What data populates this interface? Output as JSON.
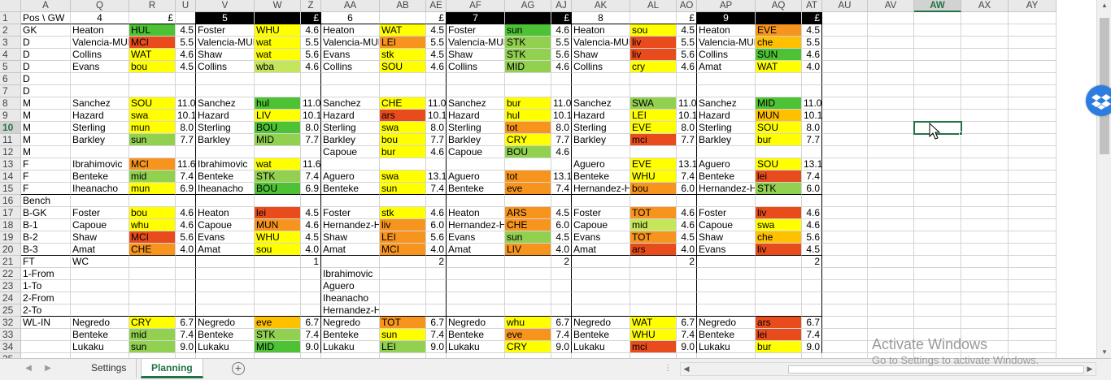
{
  "columns": [
    "A",
    "Q",
    "R",
    "U",
    "V",
    "W",
    "Z",
    "AA",
    "AB",
    "AE",
    "AF",
    "AG",
    "AJ",
    "AK",
    "AL",
    "AO",
    "AP",
    "AQ",
    "AT",
    "AU",
    "AV",
    "AW",
    "AX",
    "AY"
  ],
  "selected_column": "AW",
  "row_numbers": [
    "1",
    "2",
    "3",
    "4",
    "5",
    "6",
    "7",
    "8",
    "9",
    "10",
    "11",
    "12",
    "13",
    "14",
    "15",
    "16",
    "17",
    "18",
    "19",
    "20",
    "21",
    "22",
    "23",
    "24",
    "25",
    "32",
    "33",
    "34",
    "35"
  ],
  "selected_row": "10",
  "colors": {
    "dg": "#4dc234",
    "g": "#92d050",
    "lg": "#c5e65a",
    "y": "#ffff00",
    "yo": "#ffc000",
    "o": "#f7941d",
    "r": "#e84c1c",
    "accent": "#217346"
  },
  "cells": [
    [
      "A1",
      "Pos \\ GW"
    ],
    [
      "Q1",
      "4",
      "c"
    ],
    [
      "R1",
      "£",
      "r"
    ],
    [
      "U1",
      ""
    ],
    [
      "V1",
      "5",
      "cb"
    ],
    [
      "Z1",
      "£",
      "rb"
    ],
    [
      "AA1",
      "6",
      "c"
    ],
    [
      "AE1",
      "£",
      "r"
    ],
    [
      "AF1",
      "7",
      "cb"
    ],
    [
      "AJ1",
      "£",
      "rb"
    ],
    [
      "AK1",
      "8",
      "c"
    ],
    [
      "AO1",
      "£",
      "r"
    ],
    [
      "AP1",
      "9",
      "cb"
    ],
    [
      "AT1",
      "£",
      "rb"
    ],
    [
      "A2",
      "GK"
    ],
    [
      "A3",
      "D"
    ],
    [
      "A4",
      "D"
    ],
    [
      "A5",
      "D"
    ],
    [
      "A6",
      "D"
    ],
    [
      "A7",
      "D"
    ],
    [
      "A8",
      "M"
    ],
    [
      "A9",
      "M"
    ],
    [
      "A10",
      "M"
    ],
    [
      "A11",
      "M"
    ],
    [
      "A12",
      "M"
    ],
    [
      "A13",
      "F"
    ],
    [
      "A14",
      "F"
    ],
    [
      "A15",
      "F"
    ],
    [
      "A16",
      "Bench"
    ],
    [
      "A17",
      "B-GK"
    ],
    [
      "A18",
      "B-1"
    ],
    [
      "A19",
      "B-2"
    ],
    [
      "A20",
      "B-3"
    ],
    [
      "A21",
      "FT"
    ],
    [
      "A22",
      "1-From"
    ],
    [
      "A23",
      "1-To"
    ],
    [
      "A24",
      "2-From"
    ],
    [
      "A25",
      "2-To"
    ],
    [
      "A32",
      "WL-IN"
    ],
    [
      "Q2",
      "Heaton"
    ],
    [
      "R2",
      "HUL",
      null,
      "dg"
    ],
    [
      "U2",
      "4.5"
    ],
    [
      "Q3",
      "Valencia-MUN"
    ],
    [
      "R3",
      "MCI",
      null,
      "r"
    ],
    [
      "U3",
      "5.5"
    ],
    [
      "Q4",
      "Collins"
    ],
    [
      "R4",
      "WAT",
      null,
      "y"
    ],
    [
      "U4",
      "4.6"
    ],
    [
      "Q5",
      "Evans"
    ],
    [
      "R5",
      "bou",
      null,
      "y"
    ],
    [
      "U5",
      "4.5"
    ],
    [
      "Q8",
      "Sanchez"
    ],
    [
      "R8",
      "SOU",
      null,
      "y"
    ],
    [
      "U8",
      "11.0"
    ],
    [
      "Q9",
      "Hazard"
    ],
    [
      "R9",
      "swa",
      null,
      "y"
    ],
    [
      "U9",
      "10.1"
    ],
    [
      "Q10",
      "Sterling"
    ],
    [
      "R10",
      "mun",
      null,
      "y"
    ],
    [
      "U10",
      "8.0"
    ],
    [
      "Q11",
      "Barkley"
    ],
    [
      "R11",
      "sun",
      null,
      "g"
    ],
    [
      "U11",
      "7.7"
    ],
    [
      "Q13",
      "Ibrahimovic"
    ],
    [
      "R13",
      "MCI",
      null,
      "o"
    ],
    [
      "U13",
      "11.6"
    ],
    [
      "Q14",
      "Benteke"
    ],
    [
      "R14",
      "mid",
      null,
      "g"
    ],
    [
      "U14",
      "7.4"
    ],
    [
      "Q15",
      "Iheanacho"
    ],
    [
      "R15",
      "mun",
      null,
      "y"
    ],
    [
      "U15",
      "6.9"
    ],
    [
      "Q17",
      "Foster"
    ],
    [
      "R17",
      "bou",
      null,
      "y"
    ],
    [
      "U17",
      "4.6"
    ],
    [
      "Q18",
      "Capoue"
    ],
    [
      "R18",
      "whu",
      null,
      "y"
    ],
    [
      "U18",
      "4.6"
    ],
    [
      "Q19",
      "Shaw"
    ],
    [
      "R19",
      "MCI",
      null,
      "r"
    ],
    [
      "U19",
      "5.6"
    ],
    [
      "Q20",
      "Amat"
    ],
    [
      "R20",
      "CHE",
      null,
      "o"
    ],
    [
      "U20",
      "4.0"
    ],
    [
      "Q21",
      "WC"
    ],
    [
      "Z21",
      "1",
      "r"
    ],
    [
      "Q32",
      "Negredo"
    ],
    [
      "R32",
      "CRY",
      null,
      "y"
    ],
    [
      "U32",
      "6.7"
    ],
    [
      "Q33",
      "Benteke"
    ],
    [
      "R33",
      "mid",
      null,
      "g"
    ],
    [
      "U33",
      "7.4"
    ],
    [
      "Q34",
      "Lukaku"
    ],
    [
      "R34",
      "sun",
      null,
      "g"
    ],
    [
      "U34",
      "9.0"
    ],
    [
      "V2",
      "Foster"
    ],
    [
      "W2",
      "WHU",
      null,
      "y"
    ],
    [
      "Z2",
      "4.6"
    ],
    [
      "V3",
      "Valencia-MUN"
    ],
    [
      "W3",
      "wat",
      null,
      "y"
    ],
    [
      "Z3",
      "5.5"
    ],
    [
      "V4",
      "Shaw"
    ],
    [
      "W4",
      "wat",
      null,
      "y"
    ],
    [
      "Z4",
      "5.6"
    ],
    [
      "V5",
      "Collins"
    ],
    [
      "W5",
      "wba",
      null,
      "lg"
    ],
    [
      "Z5",
      "4.6"
    ],
    [
      "V8",
      "Sanchez"
    ],
    [
      "W8",
      "hul",
      null,
      "dg"
    ],
    [
      "Z8",
      "11.0"
    ],
    [
      "V9",
      "Hazard"
    ],
    [
      "W9",
      "LIV",
      null,
      "y"
    ],
    [
      "Z9",
      "10.1"
    ],
    [
      "V10",
      "Sterling"
    ],
    [
      "W10",
      "BOU",
      null,
      "dg"
    ],
    [
      "Z10",
      "8.0"
    ],
    [
      "V11",
      "Barkley"
    ],
    [
      "W11",
      "MID",
      null,
      "g"
    ],
    [
      "Z11",
      "7.7"
    ],
    [
      "V13",
      "Ibrahimovic"
    ],
    [
      "W13",
      "wat",
      null,
      "y"
    ],
    [
      "Z13",
      "11.6"
    ],
    [
      "V14",
      "Benteke"
    ],
    [
      "W14",
      "STK",
      null,
      "g"
    ],
    [
      "Z14",
      "7.4"
    ],
    [
      "V15",
      "Iheanacho"
    ],
    [
      "W15",
      "BOU",
      null,
      "dg"
    ],
    [
      "Z15",
      "6.9"
    ],
    [
      "V17",
      "Heaton"
    ],
    [
      "W17",
      "lei",
      null,
      "r"
    ],
    [
      "Z17",
      "4.5"
    ],
    [
      "V18",
      "Capoue"
    ],
    [
      "W18",
      "MUN",
      null,
      "o"
    ],
    [
      "Z18",
      "4.6"
    ],
    [
      "V19",
      "Evans"
    ],
    [
      "W19",
      "WHU",
      null,
      "y"
    ],
    [
      "Z19",
      "4.5"
    ],
    [
      "V20",
      "Amat"
    ],
    [
      "W20",
      "sou",
      null,
      "y"
    ],
    [
      "Z20",
      "4.0"
    ],
    [
      "V32",
      "Negredo"
    ],
    [
      "W32",
      "eve",
      null,
      "yo"
    ],
    [
      "Z32",
      "6.7"
    ],
    [
      "V33",
      "Benteke"
    ],
    [
      "W33",
      "STK",
      null,
      "g"
    ],
    [
      "Z33",
      "7.4"
    ],
    [
      "V34",
      "Lukaku"
    ],
    [
      "W34",
      "MID",
      null,
      "dg"
    ],
    [
      "Z34",
      "9.0"
    ],
    [
      "AA2",
      "Heaton"
    ],
    [
      "AB2",
      "WAT",
      null,
      "y"
    ],
    [
      "AE2",
      "4.5"
    ],
    [
      "AA3",
      "Valencia-MUN"
    ],
    [
      "AB3",
      "LEI",
      null,
      "o"
    ],
    [
      "AE3",
      "5.5"
    ],
    [
      "AA4",
      "Evans"
    ],
    [
      "AB4",
      "stk",
      null,
      "y"
    ],
    [
      "AE4",
      "4.5"
    ],
    [
      "AA5",
      "Collins"
    ],
    [
      "AB5",
      "SOU",
      null,
      "y"
    ],
    [
      "AE5",
      "4.6"
    ],
    [
      "AA8",
      "Sanchez"
    ],
    [
      "AB8",
      "CHE",
      null,
      "y"
    ],
    [
      "AE8",
      "11.0"
    ],
    [
      "AA9",
      "Hazard"
    ],
    [
      "AB9",
      "ars",
      null,
      "r"
    ],
    [
      "AE9",
      "10.1"
    ],
    [
      "AA10",
      "Sterling"
    ],
    [
      "AB10",
      "swa",
      null,
      "y"
    ],
    [
      "AE10",
      "8.0"
    ],
    [
      "AA11",
      "Barkley"
    ],
    [
      "AB11",
      "bou",
      null,
      "y"
    ],
    [
      "AE11",
      "7.7"
    ],
    [
      "AA12",
      "Capoue"
    ],
    [
      "AB12",
      "bur",
      null,
      "y"
    ],
    [
      "AE12",
      "4.6"
    ],
    [
      "AA14",
      "Aguero"
    ],
    [
      "AB14",
      "swa",
      null,
      "y"
    ],
    [
      "AE14",
      "13.1"
    ],
    [
      "AA15",
      "Benteke"
    ],
    [
      "AB15",
      "sun",
      null,
      "y"
    ],
    [
      "AE15",
      "7.4"
    ],
    [
      "AA17",
      "Foster"
    ],
    [
      "AB17",
      "stk",
      null,
      "y"
    ],
    [
      "AE17",
      "4.6"
    ],
    [
      "AA18",
      "Hernandez-HUL"
    ],
    [
      "AB18",
      "liv",
      null,
      "o"
    ],
    [
      "AE18",
      "6.0"
    ],
    [
      "AA19",
      "Shaw"
    ],
    [
      "AB19",
      "LEI",
      null,
      "o"
    ],
    [
      "AE19",
      "5.6"
    ],
    [
      "AA20",
      "Amat"
    ],
    [
      "AB20",
      "MCI",
      null,
      "o"
    ],
    [
      "AE20",
      "4.0"
    ],
    [
      "AE21",
      "2",
      "r"
    ],
    [
      "AA22",
      "Ibrahimovic"
    ],
    [
      "AA23",
      "Aguero"
    ],
    [
      "AA24",
      "Iheanacho"
    ],
    [
      "AA25",
      "Hernandez-HUL"
    ],
    [
      "AA32",
      "Negredo"
    ],
    [
      "AB32",
      "TOT",
      null,
      "o"
    ],
    [
      "AE32",
      "6.7"
    ],
    [
      "AA33",
      "Benteke"
    ],
    [
      "AB33",
      "sun",
      null,
      "y"
    ],
    [
      "AE33",
      "7.4"
    ],
    [
      "AA34",
      "Lukaku"
    ],
    [
      "AB34",
      "LEI",
      null,
      "g"
    ],
    [
      "AE34",
      "9.0"
    ],
    [
      "AF2",
      "Foster"
    ],
    [
      "AG2",
      "sun",
      null,
      "dg"
    ],
    [
      "AJ2",
      "4.6"
    ],
    [
      "AF3",
      "Valencia-MUN"
    ],
    [
      "AG3",
      "STK",
      null,
      "g"
    ],
    [
      "AJ3",
      "5.5"
    ],
    [
      "AF4",
      "Shaw"
    ],
    [
      "AG4",
      "STK",
      null,
      "g"
    ],
    [
      "AJ4",
      "5.6"
    ],
    [
      "AF5",
      "Collins"
    ],
    [
      "AG5",
      "MID",
      null,
      "g"
    ],
    [
      "AJ5",
      "4.6"
    ],
    [
      "AF8",
      "Sanchez"
    ],
    [
      "AG8",
      "bur",
      null,
      "y"
    ],
    [
      "AJ8",
      "11.0"
    ],
    [
      "AF9",
      "Hazard"
    ],
    [
      "AG9",
      "hul",
      null,
      "y"
    ],
    [
      "AJ9",
      "10.1"
    ],
    [
      "AF10",
      "Sterling"
    ],
    [
      "AG10",
      "tot",
      null,
      "o"
    ],
    [
      "AJ10",
      "8.0"
    ],
    [
      "AF11",
      "Barkley"
    ],
    [
      "AG11",
      "CRY",
      null,
      "y"
    ],
    [
      "AJ11",
      "7.7"
    ],
    [
      "AF12",
      "Capoue"
    ],
    [
      "AG12",
      "BOU",
      null,
      "g"
    ],
    [
      "AJ12",
      "4.6"
    ],
    [
      "AF14",
      "Aguero"
    ],
    [
      "AG14",
      "tot",
      null,
      "o"
    ],
    [
      "AJ14",
      "13.1"
    ],
    [
      "AF15",
      "Benteke"
    ],
    [
      "AG15",
      "eve",
      null,
      "o"
    ],
    [
      "AJ15",
      "7.4"
    ],
    [
      "AF17",
      "Heaton"
    ],
    [
      "AG17",
      "ARS",
      null,
      "o"
    ],
    [
      "AJ17",
      "4.5"
    ],
    [
      "AF18",
      "Hernandez-HUL"
    ],
    [
      "AG18",
      "CHE",
      null,
      "o"
    ],
    [
      "AJ18",
      "6.0"
    ],
    [
      "AF19",
      "Evans"
    ],
    [
      "AG19",
      "sun",
      null,
      "g"
    ],
    [
      "AJ19",
      "4.5"
    ],
    [
      "AF20",
      "Amat"
    ],
    [
      "AG20",
      "LIV",
      null,
      "o"
    ],
    [
      "AJ20",
      "4.0"
    ],
    [
      "AJ21",
      "2",
      "r"
    ],
    [
      "AF32",
      "Negredo"
    ],
    [
      "AG32",
      "whu",
      null,
      "y"
    ],
    [
      "AJ32",
      "6.7"
    ],
    [
      "AF33",
      "Benteke"
    ],
    [
      "AG33",
      "eve",
      null,
      "o"
    ],
    [
      "AJ33",
      "7.4"
    ],
    [
      "AF34",
      "Lukaku"
    ],
    [
      "AG34",
      "CRY",
      null,
      "y"
    ],
    [
      "AJ34",
      "9.0"
    ],
    [
      "AK2",
      "Heaton"
    ],
    [
      "AL2",
      "sou",
      null,
      "y"
    ],
    [
      "AO2",
      "4.5"
    ],
    [
      "AK3",
      "Valencia-MUN"
    ],
    [
      "AL3",
      "liv",
      null,
      "r"
    ],
    [
      "AO3",
      "5.5"
    ],
    [
      "AK4",
      "Shaw"
    ],
    [
      "AL4",
      "liv",
      null,
      "r"
    ],
    [
      "AO4",
      "5.6"
    ],
    [
      "AK5",
      "Collins"
    ],
    [
      "AL5",
      "cry",
      null,
      "y"
    ],
    [
      "AO5",
      "4.6"
    ],
    [
      "AK8",
      "Sanchez"
    ],
    [
      "AL8",
      "SWA",
      null,
      "g"
    ],
    [
      "AO8",
      "11.0"
    ],
    [
      "AK9",
      "Hazard"
    ],
    [
      "AL9",
      "LEI",
      null,
      "y"
    ],
    [
      "AO9",
      "10.1"
    ],
    [
      "AK10",
      "Sterling"
    ],
    [
      "AL10",
      "EVE",
      null,
      "y"
    ],
    [
      "AO10",
      "8.0"
    ],
    [
      "AK11",
      "Barkley"
    ],
    [
      "AL11",
      "mci",
      null,
      "r"
    ],
    [
      "AO11",
      "7.7"
    ],
    [
      "AK13",
      "Aguero"
    ],
    [
      "AL13",
      "EVE",
      null,
      "y"
    ],
    [
      "AO13",
      "13.1"
    ],
    [
      "AK14",
      "Benteke"
    ],
    [
      "AL14",
      "WHU",
      null,
      "y"
    ],
    [
      "AO14",
      "7.4"
    ],
    [
      "AK15",
      "Hernandez-HUL"
    ],
    [
      "AL15",
      "bou",
      null,
      "o"
    ],
    [
      "AO15",
      "6.0"
    ],
    [
      "AK17",
      "Foster"
    ],
    [
      "AL17",
      "TOT",
      null,
      "o"
    ],
    [
      "AO17",
      "4.6"
    ],
    [
      "AK18",
      "Capoue"
    ],
    [
      "AL18",
      "mid",
      null,
      "lg"
    ],
    [
      "AO18",
      "4.6"
    ],
    [
      "AK19",
      "Evans"
    ],
    [
      "AL19",
      "TOT",
      null,
      "o"
    ],
    [
      "AO19",
      "4.5"
    ],
    [
      "AK20",
      "Amat"
    ],
    [
      "AL20",
      "ars",
      null,
      "r"
    ],
    [
      "AO20",
      "4.0"
    ],
    [
      "AO21",
      "2",
      "r"
    ],
    [
      "AK32",
      "Negredo"
    ],
    [
      "AL32",
      "WAT",
      null,
      "y"
    ],
    [
      "AO32",
      "6.7"
    ],
    [
      "AK33",
      "Benteke"
    ],
    [
      "AL33",
      "WHU",
      null,
      "y"
    ],
    [
      "AO33",
      "7.4"
    ],
    [
      "AK34",
      "Lukaku"
    ],
    [
      "AL34",
      "mci",
      null,
      "r"
    ],
    [
      "AO34",
      "9.0"
    ],
    [
      "AP2",
      "Heaton"
    ],
    [
      "AQ2",
      "EVE",
      null,
      "o"
    ],
    [
      "AT2",
      "4.5"
    ],
    [
      "AP3",
      "Valencia-MUN"
    ],
    [
      "AQ3",
      "che",
      null,
      "yo"
    ],
    [
      "AT3",
      "5.5"
    ],
    [
      "AP4",
      "Collins"
    ],
    [
      "AQ4",
      "SUN",
      null,
      "dg"
    ],
    [
      "AT4",
      "4.6"
    ],
    [
      "AP5",
      "Amat"
    ],
    [
      "AQ5",
      "WAT",
      null,
      "y"
    ],
    [
      "AT5",
      "4.0"
    ],
    [
      "AP8",
      "Sanchez"
    ],
    [
      "AQ8",
      "MID",
      null,
      "dg"
    ],
    [
      "AT8",
      "11.0"
    ],
    [
      "AP9",
      "Hazard"
    ],
    [
      "AQ9",
      "MUN",
      null,
      "yo"
    ],
    [
      "AT9",
      "10.1"
    ],
    [
      "AP10",
      "Sterling"
    ],
    [
      "AQ10",
      "SOU",
      null,
      "y"
    ],
    [
      "AT10",
      "8.0"
    ],
    [
      "AP11",
      "Barkley"
    ],
    [
      "AQ11",
      "bur",
      null,
      "y"
    ],
    [
      "AT11",
      "7.7"
    ],
    [
      "AP13",
      "Aguero"
    ],
    [
      "AQ13",
      "SOU",
      null,
      "y"
    ],
    [
      "AT13",
      "13.1"
    ],
    [
      "AP14",
      "Benteke"
    ],
    [
      "AQ14",
      "lei",
      null,
      "r"
    ],
    [
      "AT14",
      "7.4"
    ],
    [
      "AP15",
      "Hernandez-HUL"
    ],
    [
      "AQ15",
      "STK",
      null,
      "g"
    ],
    [
      "AT15",
      "6.0"
    ],
    [
      "AP17",
      "Foster"
    ],
    [
      "AQ17",
      "liv",
      null,
      "r"
    ],
    [
      "AT17",
      "4.6"
    ],
    [
      "AP18",
      "Capoue"
    ],
    [
      "AQ18",
      "swa",
      null,
      "y"
    ],
    [
      "AT18",
      "4.6"
    ],
    [
      "AP19",
      "Shaw"
    ],
    [
      "AQ19",
      "che",
      null,
      "yo"
    ],
    [
      "AT19",
      "5.6"
    ],
    [
      "AP20",
      "Evans"
    ],
    [
      "AQ20",
      "liv",
      null,
      "r"
    ],
    [
      "AT20",
      "4.5"
    ],
    [
      "AT21",
      "2",
      "r"
    ],
    [
      "AP32",
      "Negredo"
    ],
    [
      "AQ32",
      "ars",
      null,
      "r"
    ],
    [
      "AT32",
      "6.7"
    ],
    [
      "AP33",
      "Benteke"
    ],
    [
      "AQ33",
      "lei",
      null,
      "r"
    ],
    [
      "AT33",
      "7.4"
    ],
    [
      "AP34",
      "Lukaku"
    ],
    [
      "AQ34",
      "bur",
      null,
      "y"
    ],
    [
      "AT34",
      "9.0"
    ]
  ],
  "sheet_tabs": [
    "Settings",
    "Planning"
  ],
  "active_tab": "Planning",
  "add_sheet_label": "+",
  "watermark": {
    "title": "Activate Windows",
    "subtitle": "Go to Settings to activate Windows."
  }
}
